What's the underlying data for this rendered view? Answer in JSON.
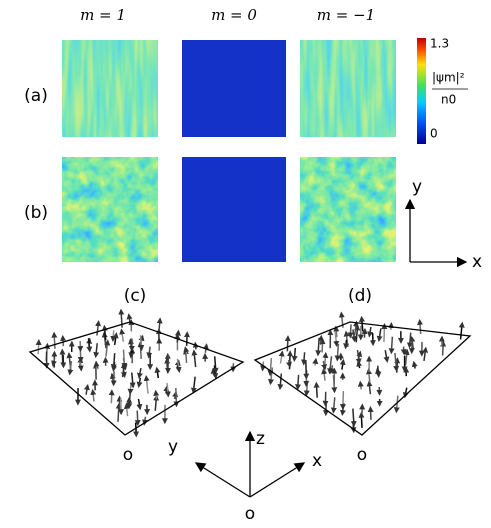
{
  "column_headers": [
    "m = 1",
    "m = 0",
    "m = −1"
  ],
  "row_labels": [
    "(a)",
    "(b)"
  ],
  "colorbar": {
    "max": "1.3",
    "label_numerator": "|ψm|²",
    "label_denominator": "n0",
    "min": "0"
  },
  "axes_2d": {
    "y": "y",
    "x": "x"
  },
  "bottom_labels": [
    "(c)",
    "(d)"
  ],
  "origin_labels": [
    "o",
    "o"
  ],
  "axes_3d": {
    "z": "z",
    "x": "x",
    "y": "y",
    "origin": "o"
  }
}
